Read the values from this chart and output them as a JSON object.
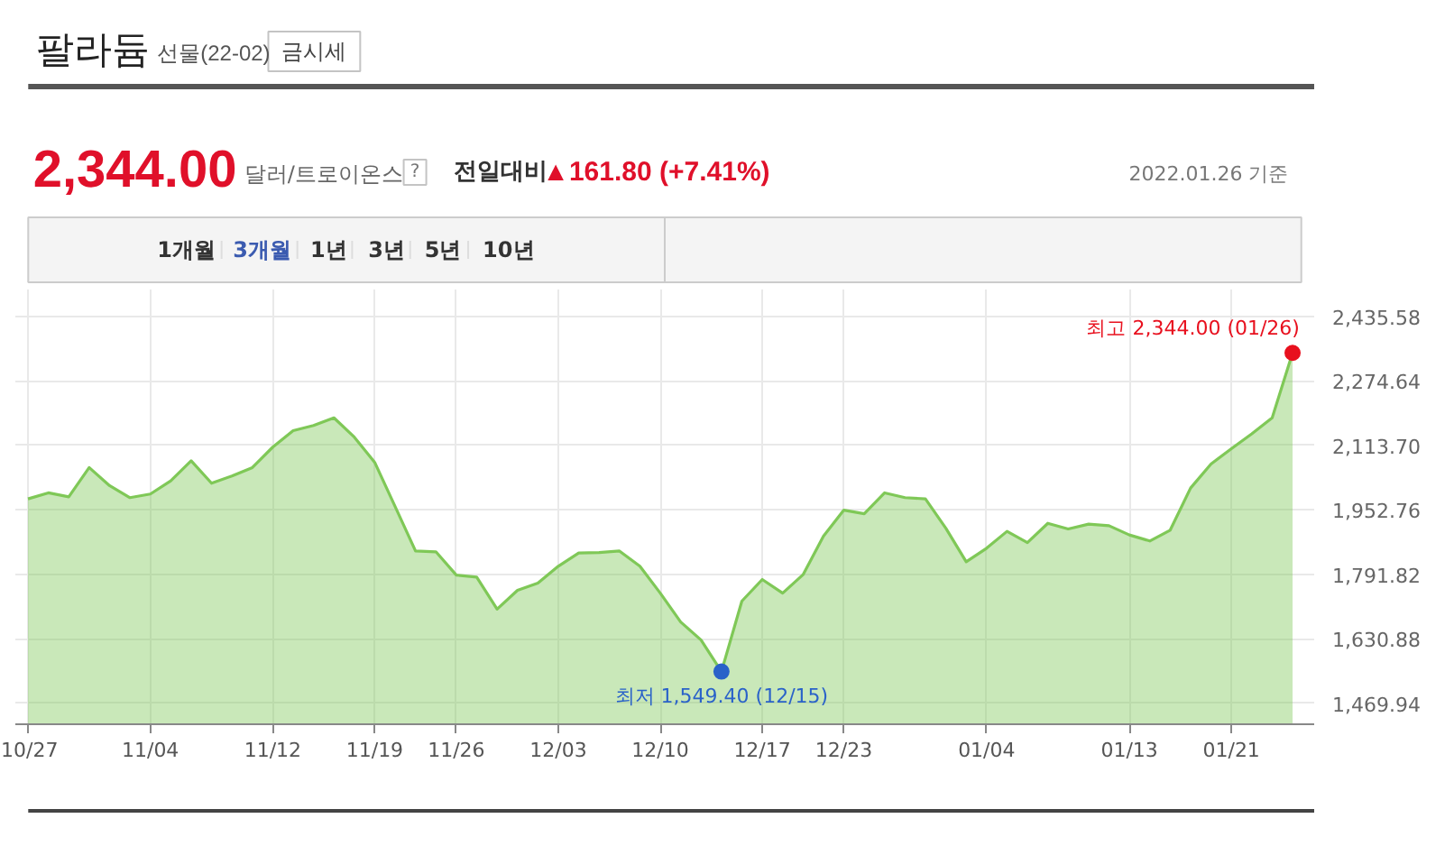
{
  "chart_data": {
    "type": "area",
    "title": "팔라듐",
    "subtitle": "선물(22-02)",
    "annotations": [
      "금시세",
      "2,344.00",
      "달러/트로이온스",
      "?",
      "전일대비",
      "▲161.80 (+7.41%)",
      "2022.01.26 기준",
      "1개월",
      "3개월",
      "1년",
      "3년",
      "5년",
      "10년"
    ],
    "categories": [
      "10/27",
      null,
      null,
      null,
      null,
      null,
      "11/04",
      null,
      null,
      null,
      null,
      null,
      "11/12",
      null,
      null,
      null,
      null,
      "11/19",
      null,
      null,
      null,
      "11/26",
      null,
      null,
      null,
      null,
      "12/03",
      null,
      null,
      null,
      null,
      "12/10",
      null,
      null,
      null,
      null,
      "12/17",
      null,
      null,
      null,
      "12/23",
      null,
      null,
      null,
      null,
      null,
      null,
      "01/04",
      null,
      null,
      null,
      null,
      null,
      null,
      "01/13",
      null,
      null,
      null,
      null,
      "01/21",
      null,
      null,
      null
    ],
    "series": [
      {
        "color": "#7fc857",
        "values": [
          1980,
          1995,
          1985,
          2058,
          2013,
          1983,
          1992,
          2025,
          2075,
          2019,
          2037,
          2058,
          2109,
          2150,
          2163,
          2182,
          2134,
          2071,
          1961,
          1850,
          1848,
          1790,
          1785,
          1705,
          1752,
          1770,
          1812,
          1845,
          1846,
          1850,
          1812,
          1745,
          1673,
          1628,
          1549.4,
          1725,
          1779,
          1745,
          1791,
          1887,
          1952,
          1943,
          1995,
          1983,
          1980,
          1907,
          1823,
          1857,
          1899,
          1871,
          1919,
          1905,
          1917,
          1913,
          1890,
          1875,
          1902,
          2007,
          2067,
          2105,
          2142,
          2182,
          2344
        ]
      },
      {
        "type": "scatter",
        "marker": "circle",
        "color": "#e8101e",
        "values": [
          null,
          null,
          null,
          null,
          null,
          null,
          null,
          null,
          null,
          null,
          null,
          null,
          null,
          null,
          null,
          null,
          null,
          null,
          null,
          null,
          null,
          null,
          null,
          null,
          null,
          null,
          null,
          null,
          null,
          null,
          null,
          null,
          null,
          null,
          null,
          null,
          null,
          null,
          null,
          null,
          null,
          null,
          null,
          null,
          null,
          null,
          null,
          null,
          null,
          null,
          null,
          null,
          null,
          null,
          null,
          null,
          null,
          null,
          null,
          null,
          null,
          null,
          2344
        ],
        "value_labels": [
          null,
          null,
          null,
          null,
          null,
          null,
          null,
          null,
          null,
          null,
          null,
          null,
          null,
          null,
          null,
          null,
          null,
          null,
          null,
          null,
          null,
          null,
          null,
          null,
          null,
          null,
          null,
          null,
          null,
          null,
          null,
          null,
          null,
          null,
          null,
          null,
          null,
          null,
          null,
          null,
          null,
          null,
          null,
          null,
          null,
          null,
          null,
          null,
          null,
          null,
          null,
          null,
          null,
          null,
          null,
          null,
          null,
          null,
          null,
          null,
          null,
          null,
          "최고 2,344.00 (01/26)"
        ]
      },
      {
        "type": "scatter",
        "marker": "circle",
        "color": "#2a62c9",
        "values": [
          null,
          null,
          null,
          null,
          null,
          null,
          null,
          null,
          null,
          null,
          null,
          null,
          null,
          null,
          null,
          null,
          null,
          null,
          null,
          null,
          null,
          null,
          null,
          null,
          null,
          null,
          null,
          null,
          null,
          null,
          null,
          null,
          null,
          null,
          1549.4,
          null,
          null,
          null,
          null,
          null,
          null,
          null,
          null,
          null,
          null,
          null,
          null,
          null,
          null,
          null,
          null,
          null,
          null,
          null,
          null,
          null,
          null,
          null,
          null,
          null,
          null,
          null,
          null
        ],
        "value_labels": [
          null,
          null,
          null,
          null,
          null,
          null,
          null,
          null,
          null,
          null,
          null,
          null,
          null,
          null,
          null,
          null,
          null,
          null,
          null,
          null,
          null,
          null,
          null,
          null,
          null,
          null,
          null,
          null,
          null,
          null,
          null,
          null,
          null,
          null,
          "최저 1,549.40 (12/15)",
          null,
          null,
          null,
          null,
          null,
          null,
          null,
          null,
          null,
          null,
          null,
          null,
          null,
          null,
          null,
          null,
          null,
          null,
          null,
          null,
          null,
          null,
          null,
          null,
          null,
          null,
          null,
          null
        ]
      }
    ],
    "ylim": [
      1418,
      2502
    ],
    "yticks": [
      {
        "value": 2435.58,
        "label": "2,435.58"
      },
      {
        "value": 2274.64,
        "label": "2,274.64"
      },
      {
        "value": 2113.7,
        "label": "2,113.70"
      },
      {
        "value": 1952.76,
        "label": "1,952.76"
      },
      {
        "value": 1791.82,
        "label": "1,791.82"
      },
      {
        "value": 1630.88,
        "label": "1,630.88"
      },
      {
        "value": 1469.94,
        "label": "1,469.94"
      }
    ],
    "grid": true
  }
}
